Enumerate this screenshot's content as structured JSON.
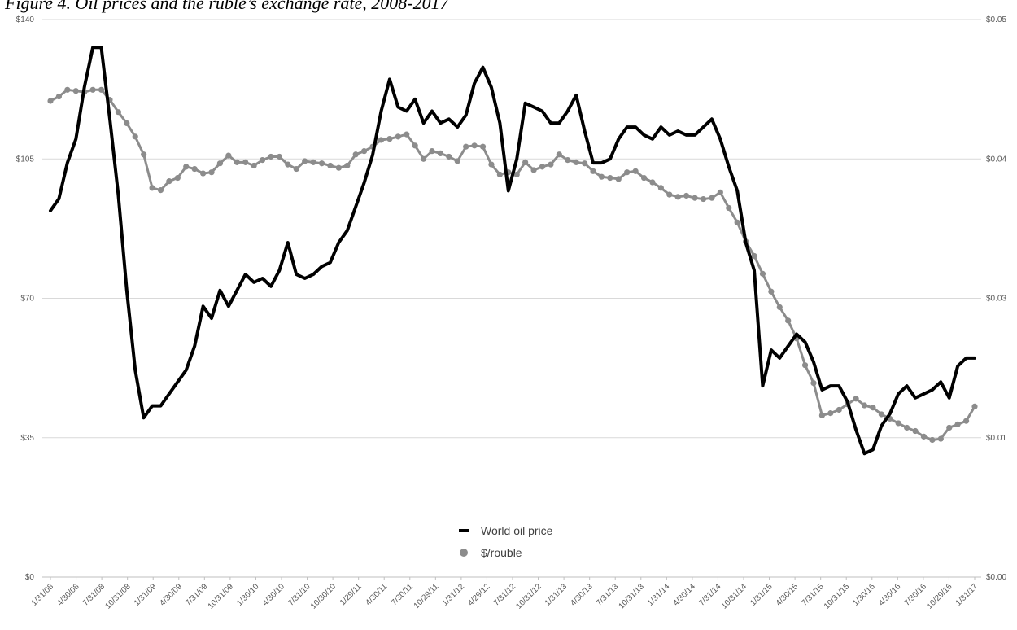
{
  "chart_data": {
    "type": "line",
    "title": "Figure 4. Oil prices and the ruble’s exchange rate, 2008-2017",
    "xlabel": "",
    "ylabel": "",
    "y_left": {
      "ticks": [
        "$0",
        "$35",
        "$70",
        "$105",
        "$140"
      ],
      "range": [
        0,
        140
      ]
    },
    "y_right": {
      "ticks": [
        "$0.00",
        "$0.01",
        "$0.03",
        "$0.04",
        "$0.05"
      ],
      "range": [
        0,
        0.05
      ]
    },
    "x_tick_labels": [
      "1/31/08",
      "4/30/08",
      "7/31/08",
      "10/31/08",
      "1/31/09",
      "4/30/09",
      "7/31/09",
      "10/31/09",
      "1/30/10",
      "4/30/10",
      "7/31/10",
      "10/30/10",
      "1/29/11",
      "4/30/11",
      "7/30/11",
      "10/29/11",
      "1/31/12",
      "4/29/12",
      "7/31/12",
      "10/31/12",
      "1/31/13",
      "4/30/13",
      "7/31/13",
      "10/31/13",
      "1/31/14",
      "4/30/14",
      "7/31/14",
      "10/31/14",
      "1/31/15",
      "4/30/15",
      "7/31/15",
      "10/31/15",
      "1/30/16",
      "4/30/16",
      "7/30/16",
      "10/29/16",
      "1/31/17"
    ],
    "grid": "horizontal",
    "legend_placement": "bottom-center",
    "series": [
      {
        "name": "World oil price",
        "axis": "left",
        "color": "#000000",
        "style": "line",
        "values": [
          92,
          95,
          104,
          110,
          123,
          133,
          133,
          115,
          96,
          72,
          52,
          40,
          43,
          43,
          46,
          49,
          52,
          58,
          68,
          65,
          72,
          68,
          72,
          76,
          74,
          75,
          73,
          77,
          84,
          76,
          75,
          76,
          78,
          79,
          84,
          87,
          93,
          99,
          106,
          117,
          125,
          118,
          117,
          120,
          114,
          117,
          114,
          115,
          113,
          116,
          124,
          128,
          123,
          114,
          97,
          105,
          119,
          118,
          117,
          114,
          114,
          117,
          121,
          112,
          104,
          104,
          105,
          110,
          113,
          113,
          111,
          110,
          113,
          111,
          112,
          111,
          111,
          113,
          115,
          110,
          103,
          97,
          84,
          77,
          48,
          57,
          55,
          58,
          61,
          59,
          54,
          47,
          48,
          48,
          44,
          37,
          31,
          32,
          38,
          41,
          46,
          48,
          45,
          46,
          47,
          49,
          45,
          53,
          55,
          55
        ],
        "points": 110
      },
      {
        "name": "$/rouble",
        "axis": "right",
        "color": "#8c8c8c",
        "style": "line-markers",
        "values": [
          0.0427,
          0.0431,
          0.0437,
          0.0436,
          0.0435,
          0.0437,
          0.0437,
          0.0428,
          0.0417,
          0.0407,
          0.0395,
          0.0379,
          0.0349,
          0.0347,
          0.0355,
          0.0358,
          0.0368,
          0.0366,
          0.0362,
          0.0363,
          0.0371,
          0.0378,
          0.0372,
          0.0372,
          0.0369,
          0.0374,
          0.0377,
          0.0377,
          0.037,
          0.0366,
          0.0373,
          0.0372,
          0.0371,
          0.0369,
          0.0367,
          0.0369,
          0.0379,
          0.0382,
          0.0386,
          0.0392,
          0.0393,
          0.0395,
          0.0397,
          0.0387,
          0.0375,
          0.0382,
          0.038,
          0.0377,
          0.0373,
          0.0386,
          0.0387,
          0.0386,
          0.037,
          0.0361,
          0.0363,
          0.0361,
          0.0372,
          0.0365,
          0.0368,
          0.037,
          0.0379,
          0.0374,
          0.0372,
          0.0371,
          0.0364,
          0.0359,
          0.0358,
          0.0357,
          0.0363,
          0.0364,
          0.0358,
          0.0354,
          0.0349,
          0.0343,
          0.0341,
          0.0342,
          0.034,
          0.0339,
          0.034,
          0.0345,
          0.0331,
          0.0318,
          0.0301,
          0.0288,
          0.0272,
          0.0256,
          0.0242,
          0.023,
          0.0214,
          0.019,
          0.0174,
          0.0145,
          0.0147,
          0.015,
          0.0155,
          0.016,
          0.0154,
          0.0152,
          0.0146,
          0.0142,
          0.0138,
          0.0134,
          0.0131,
          0.0126,
          0.0123,
          0.0124,
          0.0134,
          0.0137,
          0.014,
          0.0153
        ],
        "points": 110
      }
    ]
  }
}
